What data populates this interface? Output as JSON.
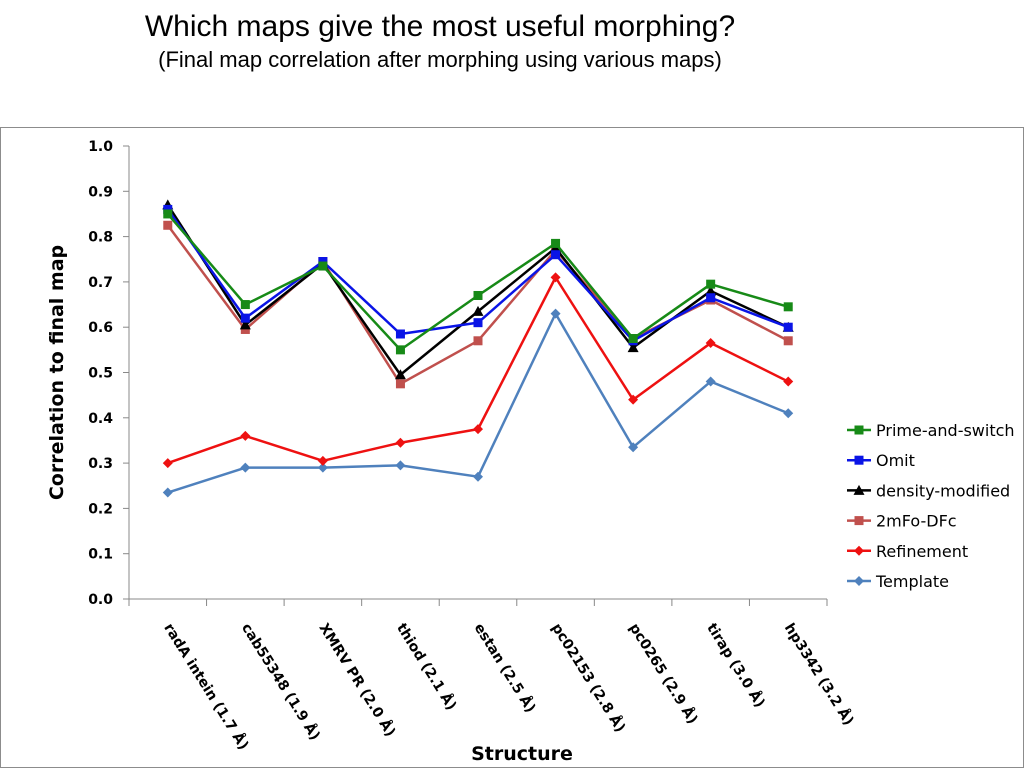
{
  "slide": {
    "title": "Which maps give the most useful morphing?",
    "subtitle": "(Final map correlation after morphing using various maps)"
  },
  "chart_data": {
    "type": "line",
    "title": "",
    "xlabel": "Structure",
    "ylabel": "Correlation to final map",
    "ylim": [
      0,
      1.0
    ],
    "yticks": [
      "0.0",
      "0.1",
      "0.2",
      "0.3",
      "0.4",
      "0.5",
      "0.6",
      "0.7",
      "0.8",
      "0.9",
      "1.0"
    ],
    "grid": false,
    "legend_position": "right",
    "categories": [
      "radA intein (1.7 Å)",
      "cab55348 (1.9 Å)",
      "XMRV PR (2.0 Å)",
      "thiod (2.1 Å)",
      "estan (2.5 Å)",
      "pc02153 (2.8 Å)",
      "pc0265 (2.9 Å)",
      "tirap (3.0 Å)",
      "hp3342 (3.2 Å)"
    ],
    "series": [
      {
        "name": "Prime-and-switch",
        "color": "#178a17",
        "marker": "square",
        "values": [
          0.85,
          0.65,
          0.735,
          0.55,
          0.67,
          0.785,
          0.575,
          0.695,
          0.645
        ]
      },
      {
        "name": "Omit",
        "color": "#0a14e6",
        "marker": "square",
        "values": [
          0.86,
          0.62,
          0.745,
          0.585,
          0.61,
          0.76,
          0.57,
          0.665,
          0.6
        ]
      },
      {
        "name": "density-modified",
        "color": "#000000",
        "marker": "triangle",
        "values": [
          0.87,
          0.605,
          0.74,
          0.495,
          0.635,
          0.775,
          0.555,
          0.68,
          0.6
        ]
      },
      {
        "name": "2mFo-DFc",
        "color": "#c0504d",
        "marker": "square",
        "values": [
          0.825,
          0.595,
          0.745,
          0.475,
          0.57,
          0.77,
          0.575,
          0.66,
          0.57
        ]
      },
      {
        "name": "Refinement",
        "color": "#ee1111",
        "marker": "diamond",
        "values": [
          0.3,
          0.36,
          0.305,
          0.345,
          0.375,
          0.71,
          0.44,
          0.565,
          0.48
        ]
      },
      {
        "name": "Template",
        "color": "#4f81bd",
        "marker": "diamond",
        "values": [
          0.235,
          0.29,
          0.29,
          0.295,
          0.27,
          0.63,
          0.335,
          0.48,
          0.41
        ]
      }
    ]
  }
}
